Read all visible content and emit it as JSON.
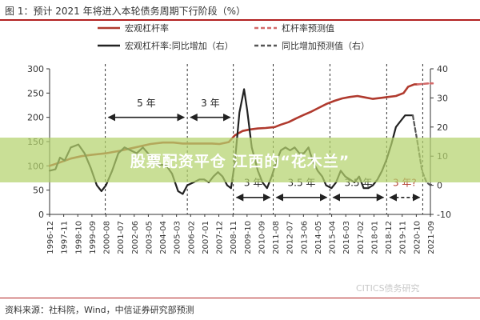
{
  "figure": {
    "title": "图 1：预计 2021 年将进入本轮债务周期下行阶段（%）",
    "source": "资料来源：社科院，Wind，中信证券研究部预测",
    "watermark": "CITICS债务研究"
  },
  "banner": {
    "text": "股票配资平仓 江西的“花木兰”",
    "color": "#b4d26e"
  },
  "chart_data": {
    "type": "line",
    "x": [
      "1996-12",
      "1997-11",
      "1998-10",
      "1999-09",
      "2000-08",
      "2001-07",
      "2002-06",
      "2003-05",
      "2004-04",
      "2005-03",
      "2006-02",
      "2007-01",
      "2007-12",
      "2008-11",
      "2009-10",
      "2010-09",
      "2011-08",
      "2012-07",
      "2013-06",
      "2014-05",
      "2015-04",
      "2016-03",
      "2017-02",
      "2018-01",
      "2018-12",
      "2019-11",
      "2020-10",
      "2021-09"
    ],
    "y_left": {
      "range": [
        0,
        300
      ],
      "ticks": [
        0,
        50,
        100,
        150,
        200,
        250,
        300
      ]
    },
    "y_right": {
      "range": [
        -10,
        40
      ],
      "ticks": [
        -10,
        0,
        10,
        20,
        30,
        40
      ]
    },
    "grid": false,
    "legend": [
      {
        "label": "宏观杠杆率",
        "color": "#b03a2e",
        "style": "solid"
      },
      {
        "label": "杠杆率预测值",
        "color": "#d46a6a",
        "style": "dashed"
      },
      {
        "label": "宏观杠杆率:同比增加（右）",
        "color": "#222222",
        "style": "solid"
      },
      {
        "label": "同比增加预测值（右）",
        "color": "#555555",
        "style": "dashed"
      }
    ],
    "series": [
      {
        "name": "宏观杠杆率",
        "axis": "left",
        "color": "#b03a2e",
        "points": [
          [
            1996.92,
            100
          ],
          [
            1997.5,
            106
          ],
          [
            1998.3,
            115
          ],
          [
            1999.0,
            120
          ],
          [
            1999.7,
            123
          ],
          [
            2000.6,
            126
          ],
          [
            2001.5,
            131
          ],
          [
            2002.5,
            138
          ],
          [
            2003.5,
            145
          ],
          [
            2004.3,
            148
          ],
          [
            2005.0,
            148
          ],
          [
            2005.6,
            146
          ],
          [
            2006.2,
            146
          ],
          [
            2007.0,
            146
          ],
          [
            2007.5,
            146
          ],
          [
            2008.0,
            145
          ],
          [
            2008.6,
            149
          ],
          [
            2009.0,
            163
          ],
          [
            2009.5,
            172
          ],
          [
            2010.0,
            175
          ],
          [
            2010.5,
            177
          ],
          [
            2011.0,
            178
          ],
          [
            2011.6,
            180
          ],
          [
            2012.0,
            185
          ],
          [
            2012.5,
            190
          ],
          [
            2013.0,
            198
          ],
          [
            2013.5,
            205
          ],
          [
            2014.0,
            212
          ],
          [
            2014.5,
            220
          ],
          [
            2015.0,
            228
          ],
          [
            2015.5,
            234
          ],
          [
            2016.0,
            239
          ],
          [
            2016.5,
            242
          ],
          [
            2017.0,
            244
          ],
          [
            2017.5,
            241
          ],
          [
            2018.0,
            238
          ],
          [
            2018.5,
            240
          ],
          [
            2019.0,
            242
          ],
          [
            2019.5,
            244
          ],
          [
            2020.0,
            250
          ],
          [
            2020.3,
            263
          ],
          [
            2020.7,
            268
          ],
          [
            2020.92,
            268
          ]
        ]
      },
      {
        "name": "杠杆率预测值",
        "axis": "left",
        "color": "#d46a6a",
        "dashed": true,
        "points": [
          [
            2020.92,
            268
          ],
          [
            2021.3,
            269
          ],
          [
            2021.7,
            270
          ],
          [
            2021.9,
            270
          ]
        ]
      },
      {
        "name": "宏观杠杆率:同比增加（右）",
        "axis": "right",
        "color": "#222222",
        "points": [
          [
            1996.92,
            5
          ],
          [
            1997.3,
            5.5
          ],
          [
            1997.6,
            9.5
          ],
          [
            1997.9,
            8.5
          ],
          [
            1998.3,
            13
          ],
          [
            1998.8,
            14
          ],
          [
            1999.2,
            11
          ],
          [
            1999.6,
            6
          ],
          [
            2000.0,
            0
          ],
          [
            2000.3,
            -2
          ],
          [
            2000.6,
            0
          ],
          [
            2001.0,
            5
          ],
          [
            2001.4,
            11
          ],
          [
            2001.8,
            13
          ],
          [
            2002.2,
            12
          ],
          [
            2002.6,
            11
          ],
          [
            2003.0,
            13
          ],
          [
            2003.5,
            10
          ],
          [
            2004.0,
            7
          ],
          [
            2004.5,
            7
          ],
          [
            2004.9,
            4
          ],
          [
            2005.3,
            -2
          ],
          [
            2005.6,
            -3
          ],
          [
            2005.9,
            0
          ],
          [
            2006.3,
            1
          ],
          [
            2006.7,
            2
          ],
          [
            2007.0,
            2
          ],
          [
            2007.3,
            1
          ],
          [
            2007.6,
            3
          ],
          [
            2007.9,
            4.5
          ],
          [
            2008.2,
            3
          ],
          [
            2008.5,
            0
          ],
          [
            2008.75,
            -1
          ],
          [
            2009.0,
            8
          ],
          [
            2009.3,
            25
          ],
          [
            2009.6,
            33
          ],
          [
            2009.8,
            26
          ],
          [
            2010.1,
            13
          ],
          [
            2010.5,
            5
          ],
          [
            2010.8,
            1
          ],
          [
            2011.1,
            -1
          ],
          [
            2011.4,
            3
          ],
          [
            2011.7,
            8
          ],
          [
            2012.0,
            12
          ],
          [
            2012.3,
            13
          ],
          [
            2012.6,
            12
          ],
          [
            2012.9,
            13
          ],
          [
            2013.2,
            11
          ],
          [
            2013.5,
            11
          ],
          [
            2013.8,
            13
          ],
          [
            2014.1,
            8
          ],
          [
            2014.4,
            5
          ],
          [
            2014.7,
            3
          ],
          [
            2014.95,
            0
          ],
          [
            2015.3,
            -1
          ],
          [
            2015.6,
            1
          ],
          [
            2015.9,
            5
          ],
          [
            2016.2,
            3
          ],
          [
            2016.5,
            2
          ],
          [
            2016.8,
            1
          ],
          [
            2017.1,
            3
          ],
          [
            2017.4,
            -1
          ],
          [
            2017.7,
            -1
          ],
          [
            2018.0,
            0
          ],
          [
            2018.3,
            2
          ],
          [
            2018.6,
            5
          ],
          [
            2018.9,
            9
          ],
          [
            2019.2,
            14
          ],
          [
            2019.5,
            20
          ],
          [
            2019.8,
            22
          ],
          [
            2020.1,
            24
          ],
          [
            2020.4,
            24
          ],
          [
            2020.6,
            24
          ]
        ]
      },
      {
        "name": "同比增加预测值（右）",
        "axis": "right",
        "color": "#555555",
        "dashed": true,
        "points": [
          [
            2020.6,
            24
          ],
          [
            2020.9,
            15
          ],
          [
            2021.2,
            5
          ],
          [
            2021.5,
            1
          ],
          [
            2021.75,
            0
          ],
          [
            2021.9,
            0.5
          ]
        ]
      }
    ],
    "cycle_markers": [
      2000.55,
      2005.9,
      2008.9,
      2011.5,
      2015.2,
      2018.9,
      2021.25
    ],
    "annotations": [
      {
        "text": "5 年",
        "from": 2000.55,
        "to": 2005.9,
        "y": 200,
        "text_y": 229
      },
      {
        "text": "3 年",
        "from": 2005.9,
        "to": 2008.9,
        "y": 200,
        "text_y": 229
      },
      {
        "text": "3 年",
        "from": 2008.9,
        "to": 2011.5,
        "y": 35,
        "text_y": 65
      },
      {
        "text": "3.5 年",
        "from": 2011.5,
        "to": 2015.2,
        "y": 35,
        "text_y": 65
      },
      {
        "text": "3.5 年",
        "from": 2015.2,
        "to": 2018.9,
        "y": 35,
        "text_y": 65
      },
      {
        "text": "3 年?",
        "from": 2018.9,
        "to": 2021.25,
        "y": 35,
        "text_y": 65,
        "dashed": true
      }
    ]
  }
}
